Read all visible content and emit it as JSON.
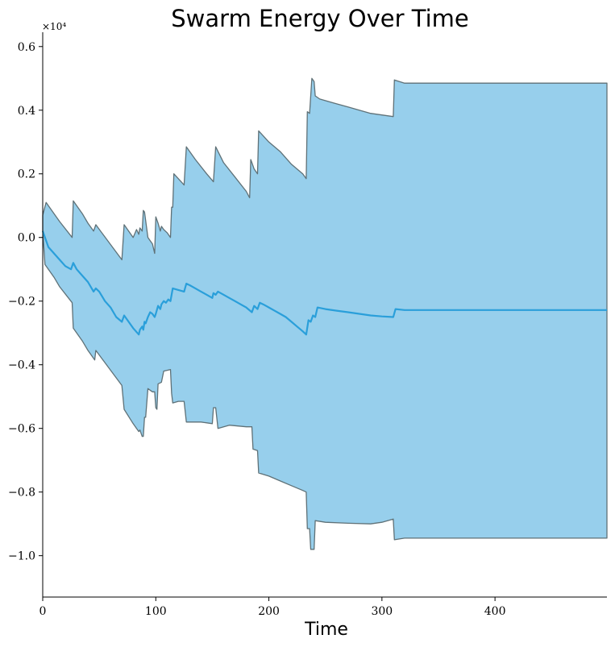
{
  "chart_data": {
    "type": "area",
    "title": "Swarm Energy Over Time",
    "xlabel": "Time",
    "ylabel": "",
    "y_scale_label": "×10⁴",
    "xlim": [
      0,
      499
    ],
    "ylim": [
      -1.13,
      0.645
    ],
    "x_ticks": [
      0,
      100,
      200,
      300,
      400
    ],
    "y_ticks": [
      0.6,
      0.4,
      0.2,
      0.0,
      -0.2,
      -0.4,
      -0.6,
      -0.8,
      -1.0
    ],
    "x_tick_labels": [
      "0",
      "100",
      "200",
      "300",
      "400"
    ],
    "y_tick_labels": [
      "0.6",
      "0.4",
      "0.2",
      "0.0",
      "−0.2",
      "−0.4",
      "−0.6",
      "−0.8",
      "−1.0"
    ],
    "grid": false,
    "colors": {
      "fill": "#97CFEC",
      "edge": "#5f7177",
      "mean": "#2A9FDA"
    },
    "series": [
      {
        "role": "mean",
        "points": [
          [
            0,
            0.02
          ],
          [
            5,
            -0.03
          ],
          [
            10,
            -0.05
          ],
          [
            15,
            -0.07
          ],
          [
            20,
            -0.09
          ],
          [
            25,
            -0.1
          ],
          [
            27,
            -0.08
          ],
          [
            30,
            -0.1
          ],
          [
            35,
            -0.12
          ],
          [
            40,
            -0.14
          ],
          [
            45,
            -0.17
          ],
          [
            47,
            -0.16
          ],
          [
            50,
            -0.17
          ],
          [
            55,
            -0.2
          ],
          [
            60,
            -0.22
          ],
          [
            65,
            -0.25
          ],
          [
            70,
            -0.265
          ],
          [
            72,
            -0.245
          ],
          [
            75,
            -0.26
          ],
          [
            80,
            -0.285
          ],
          [
            85,
            -0.305
          ],
          [
            86,
            -0.29
          ],
          [
            88,
            -0.28
          ],
          [
            89,
            -0.29
          ],
          [
            90,
            -0.265
          ],
          [
            91,
            -0.27
          ],
          [
            93,
            -0.25
          ],
          [
            95,
            -0.235
          ],
          [
            97,
            -0.24
          ],
          [
            99,
            -0.25
          ],
          [
            100,
            -0.24
          ],
          [
            102,
            -0.215
          ],
          [
            104,
            -0.225
          ],
          [
            105,
            -0.21
          ],
          [
            107,
            -0.2
          ],
          [
            109,
            -0.205
          ],
          [
            111,
            -0.195
          ],
          [
            113,
            -0.2
          ],
          [
            115,
            -0.16
          ],
          [
            120,
            -0.165
          ],
          [
            125,
            -0.17
          ],
          [
            127,
            -0.145
          ],
          [
            130,
            -0.15
          ],
          [
            135,
            -0.16
          ],
          [
            140,
            -0.17
          ],
          [
            145,
            -0.18
          ],
          [
            150,
            -0.19
          ],
          [
            151,
            -0.175
          ],
          [
            153,
            -0.18
          ],
          [
            155,
            -0.17
          ],
          [
            160,
            -0.18
          ],
          [
            165,
            -0.19
          ],
          [
            170,
            -0.2
          ],
          [
            175,
            -0.21
          ],
          [
            180,
            -0.22
          ],
          [
            185,
            -0.235
          ],
          [
            187,
            -0.215
          ],
          [
            190,
            -0.225
          ],
          [
            192,
            -0.205
          ],
          [
            195,
            -0.21
          ],
          [
            200,
            -0.22
          ],
          [
            205,
            -0.23
          ],
          [
            210,
            -0.24
          ],
          [
            215,
            -0.25
          ],
          [
            220,
            -0.265
          ],
          [
            225,
            -0.28
          ],
          [
            230,
            -0.295
          ],
          [
            233,
            -0.305
          ],
          [
            235,
            -0.26
          ],
          [
            237,
            -0.265
          ],
          [
            239,
            -0.245
          ],
          [
            241,
            -0.25
          ],
          [
            243,
            -0.22
          ],
          [
            250,
            -0.225
          ],
          [
            260,
            -0.23
          ],
          [
            270,
            -0.235
          ],
          [
            280,
            -0.24
          ],
          [
            290,
            -0.245
          ],
          [
            300,
            -0.248
          ],
          [
            310,
            -0.25
          ],
          [
            312,
            -0.225
          ],
          [
            320,
            -0.228
          ],
          [
            400,
            -0.228
          ],
          [
            499,
            -0.228
          ]
        ]
      },
      {
        "role": "upper",
        "points": [
          [
            0,
            0.07
          ],
          [
            3,
            0.11
          ],
          [
            15,
            0.05
          ],
          [
            26,
            0.0
          ],
          [
            27,
            0.115
          ],
          [
            35,
            0.075
          ],
          [
            40,
            0.045
          ],
          [
            45,
            0.02
          ],
          [
            46,
            0.03
          ],
          [
            47,
            0.04
          ],
          [
            70,
            -0.07
          ],
          [
            72,
            0.04
          ],
          [
            80,
            0.0
          ],
          [
            83,
            0.025
          ],
          [
            85,
            0.01
          ],
          [
            86,
            0.03
          ],
          [
            88,
            0.02
          ],
          [
            89,
            0.085
          ],
          [
            90,
            0.08
          ],
          [
            93,
            0.0
          ],
          [
            95,
            -0.01
          ],
          [
            97,
            -0.02
          ],
          [
            99,
            -0.05
          ],
          [
            100,
            0.065
          ],
          [
            102,
            0.045
          ],
          [
            104,
            0.02
          ],
          [
            105,
            0.035
          ],
          [
            107,
            0.025
          ],
          [
            110,
            0.015
          ],
          [
            113,
            0.0
          ],
          [
            114,
            0.095
          ],
          [
            115,
            0.095
          ],
          [
            116,
            0.2
          ],
          [
            125,
            0.165
          ],
          [
            127,
            0.285
          ],
          [
            135,
            0.245
          ],
          [
            145,
            0.2
          ],
          [
            151,
            0.175
          ],
          [
            153,
            0.285
          ],
          [
            160,
            0.235
          ],
          [
            170,
            0.19
          ],
          [
            180,
            0.145
          ],
          [
            183,
            0.125
          ],
          [
            184,
            0.245
          ],
          [
            185,
            0.235
          ],
          [
            187,
            0.215
          ],
          [
            190,
            0.2
          ],
          [
            191,
            0.335
          ],
          [
            200,
            0.3
          ],
          [
            210,
            0.27
          ],
          [
            220,
            0.23
          ],
          [
            230,
            0.2
          ],
          [
            233,
            0.185
          ],
          [
            234,
            0.395
          ],
          [
            236,
            0.39
          ],
          [
            238,
            0.5
          ],
          [
            240,
            0.49
          ],
          [
            241,
            0.445
          ],
          [
            245,
            0.435
          ],
          [
            260,
            0.42
          ],
          [
            270,
            0.41
          ],
          [
            290,
            0.39
          ],
          [
            310,
            0.38
          ],
          [
            311,
            0.495
          ],
          [
            320,
            0.485
          ],
          [
            400,
            0.485
          ],
          [
            499,
            0.485
          ]
        ]
      },
      {
        "role": "lower",
        "points": [
          [
            0,
            0.02
          ],
          [
            2,
            -0.085
          ],
          [
            10,
            -0.125
          ],
          [
            15,
            -0.155
          ],
          [
            26,
            -0.205
          ],
          [
            27,
            -0.285
          ],
          [
            35,
            -0.325
          ],
          [
            40,
            -0.355
          ],
          [
            46,
            -0.385
          ],
          [
            47,
            -0.355
          ],
          [
            70,
            -0.465
          ],
          [
            72,
            -0.54
          ],
          [
            80,
            -0.585
          ],
          [
            83,
            -0.6
          ],
          [
            85,
            -0.61
          ],
          [
            86,
            -0.605
          ],
          [
            88,
            -0.625
          ],
          [
            89,
            -0.625
          ],
          [
            90,
            -0.565
          ],
          [
            91,
            -0.565
          ],
          [
            93,
            -0.475
          ],
          [
            97,
            -0.485
          ],
          [
            99,
            -0.485
          ],
          [
            100,
            -0.535
          ],
          [
            101,
            -0.54
          ],
          [
            102,
            -0.46
          ],
          [
            105,
            -0.455
          ],
          [
            107,
            -0.42
          ],
          [
            113,
            -0.415
          ],
          [
            114,
            -0.49
          ],
          [
            115,
            -0.52
          ],
          [
            120,
            -0.515
          ],
          [
            125,
            -0.515
          ],
          [
            127,
            -0.58
          ],
          [
            140,
            -0.58
          ],
          [
            150,
            -0.585
          ],
          [
            151,
            -0.535
          ],
          [
            153,
            -0.535
          ],
          [
            155,
            -0.6
          ],
          [
            165,
            -0.59
          ],
          [
            180,
            -0.595
          ],
          [
            185,
            -0.595
          ],
          [
            186,
            -0.665
          ],
          [
            190,
            -0.67
          ],
          [
            191,
            -0.74
          ],
          [
            200,
            -0.75
          ],
          [
            210,
            -0.765
          ],
          [
            220,
            -0.78
          ],
          [
            230,
            -0.795
          ],
          [
            233,
            -0.8
          ],
          [
            234,
            -0.915
          ],
          [
            236,
            -0.915
          ],
          [
            237,
            -0.98
          ],
          [
            240,
            -0.98
          ],
          [
            241,
            -0.89
          ],
          [
            250,
            -0.895
          ],
          [
            270,
            -0.898
          ],
          [
            290,
            -0.9
          ],
          [
            300,
            -0.895
          ],
          [
            310,
            -0.885
          ],
          [
            311,
            -0.95
          ],
          [
            320,
            -0.945
          ],
          [
            400,
            -0.945
          ],
          [
            499,
            -0.945
          ]
        ]
      }
    ]
  }
}
